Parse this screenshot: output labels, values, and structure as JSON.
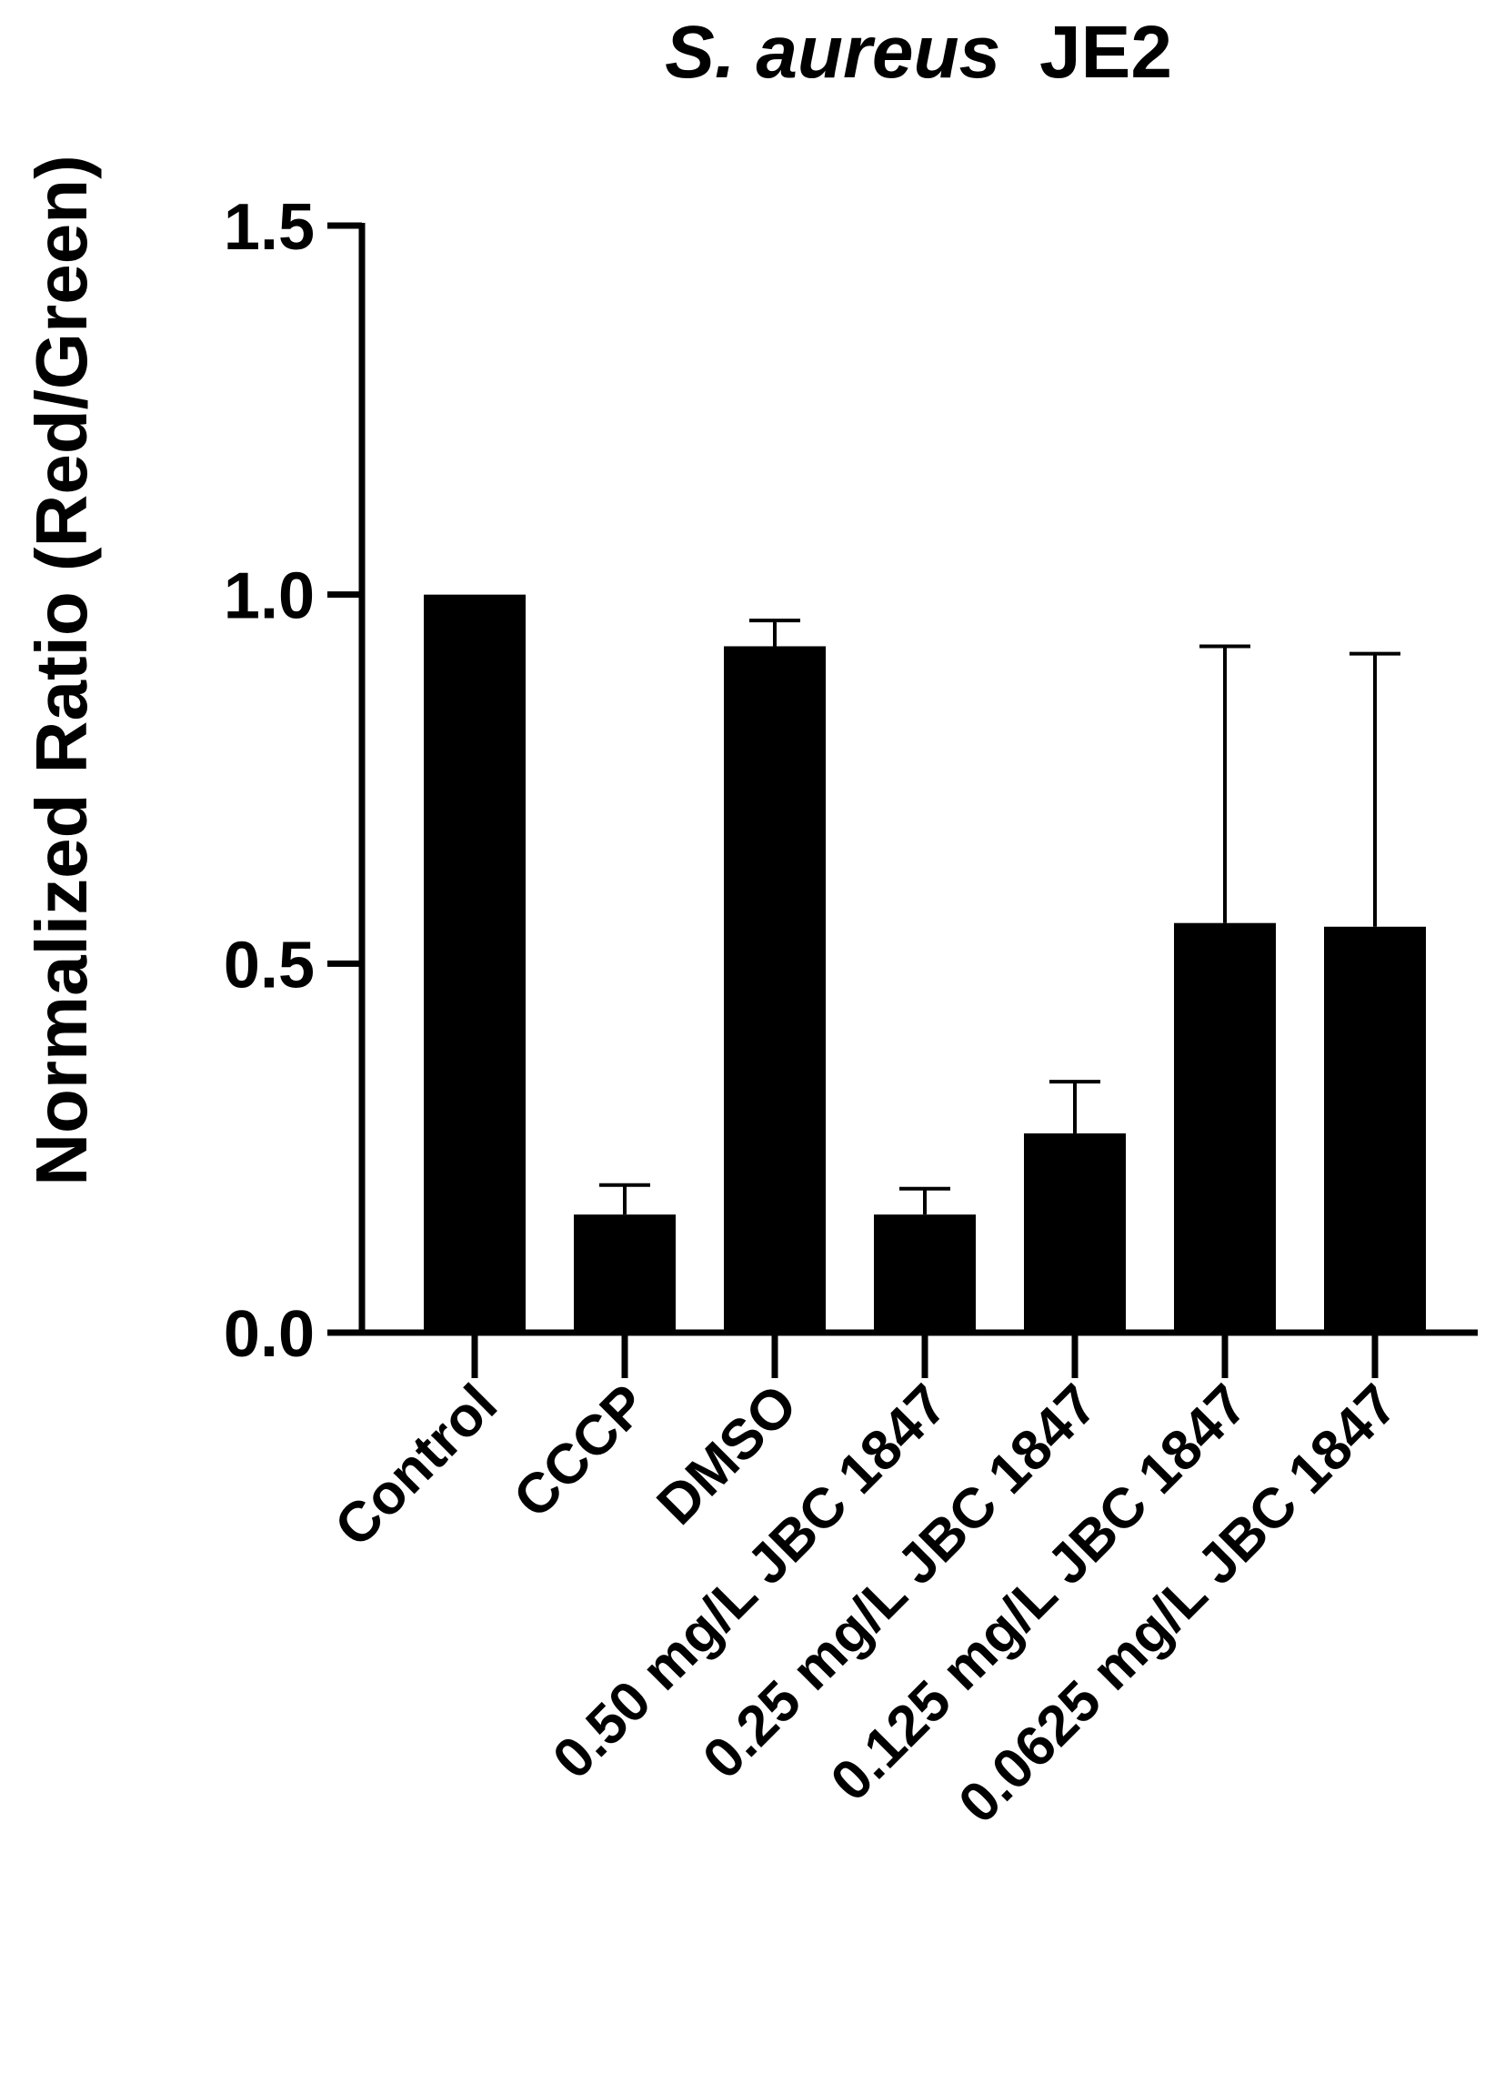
{
  "chart_data": {
    "type": "bar",
    "title": {
      "italic_part": "S. aureus",
      "plain_part": "JE2"
    },
    "xlabel": "",
    "ylabel": "Normalized Ratio (Red/Green)",
    "ylim": [
      0,
      1.5
    ],
    "yticks": [
      0.0,
      0.5,
      1.0,
      1.5
    ],
    "ytick_labels": [
      "0.0",
      "0.5",
      "1.0",
      "1.5"
    ],
    "categories": [
      "Control",
      "CCCP",
      "DMSO",
      "0.50 mg/L JBC 1847",
      "0.25 mg/L JBC 1847",
      "0.125 mg/L JBC 1847",
      "0.0625 mg/L JBC 1847"
    ],
    "values": [
      1.0,
      0.16,
      0.93,
      0.16,
      0.27,
      0.555,
      0.55
    ],
    "error_upper": [
      null,
      0.2,
      0.965,
      0.195,
      0.34,
      0.93,
      0.92
    ],
    "grid": false,
    "legend": "none",
    "bar_color": "#000000"
  }
}
